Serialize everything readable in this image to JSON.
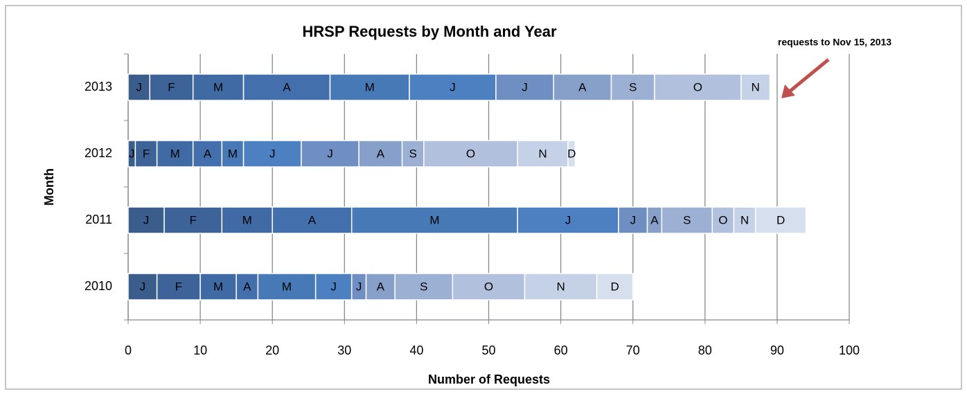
{
  "chart_data": {
    "type": "stacked_barh",
    "title": "HRSP Requests by Month and Year",
    "xlabel": "Number of Requests",
    "ylabel": "Month",
    "annotation": "requests to Nov 15, 2013",
    "categories": [
      "2010",
      "2011",
      "2012",
      "2013"
    ],
    "xlim": [
      0,
      100
    ],
    "xticks": [
      0,
      10,
      20,
      30,
      40,
      50,
      60,
      70,
      80,
      90,
      100
    ],
    "grid": true,
    "series": [
      {
        "name": "J",
        "color": "#3a5d8c",
        "values": [
          4,
          5,
          1,
          3
        ]
      },
      {
        "name": "F",
        "color": "#3d6398",
        "values": [
          6,
          8,
          3,
          6
        ]
      },
      {
        "name": "M",
        "color": "#406aa3",
        "values": [
          5,
          7,
          5,
          7
        ]
      },
      {
        "name": "A",
        "color": "#4370ac",
        "values": [
          3,
          11,
          4,
          12
        ]
      },
      {
        "name": "M",
        "color": "#4779b6",
        "values": [
          8,
          23,
          3,
          11
        ]
      },
      {
        "name": "J",
        "color": "#4c80c0",
        "values": [
          5,
          14,
          8,
          12
        ]
      },
      {
        "name": "J",
        "color": "#6f8fc2",
        "values": [
          2,
          4,
          8,
          8
        ]
      },
      {
        "name": "A",
        "color": "#87a0ca",
        "values": [
          4,
          2,
          6,
          8
        ]
      },
      {
        "name": "S",
        "color": "#9bb0d3",
        "values": [
          8,
          7,
          3,
          6
        ]
      },
      {
        "name": "O",
        "color": "#b1c1dd",
        "values": [
          10,
          3,
          13,
          12
        ]
      },
      {
        "name": "N",
        "color": "#c5d1e6",
        "values": [
          10,
          3,
          7,
          4
        ]
      },
      {
        "name": "D",
        "color": "#d6dfed",
        "values": [
          5,
          7,
          1,
          null
        ]
      }
    ]
  }
}
